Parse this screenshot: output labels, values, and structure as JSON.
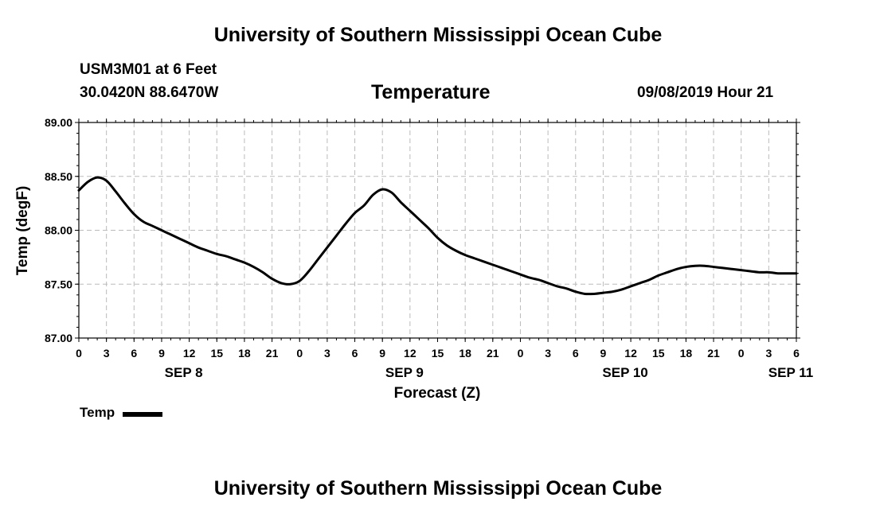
{
  "header": {
    "title": "University of Southern Mississippi Ocean Cube",
    "station": "USM3M01 at 6 Feet",
    "coordinates": "30.0420N 88.6470W",
    "parameter": "Temperature",
    "datetime": "09/08/2019 Hour 21"
  },
  "footer": {
    "title": "University of Southern Mississippi Ocean Cube"
  },
  "colors": {
    "line": "#000000",
    "grid": "#bbbbbb"
  },
  "chart_data": {
    "type": "line",
    "title": "Temperature",
    "xlabel": "Forecast (Z)",
    "ylabel": "Temp (degF)",
    "ylim": [
      87.0,
      89.0
    ],
    "yticks": [
      "87.00",
      "87.50",
      "88.00",
      "88.50",
      "89.00"
    ],
    "xlim_hours": [
      0,
      78
    ],
    "xtick_step_hours": 3,
    "xtick_labels": [
      "0",
      "3",
      "6",
      "9",
      "12",
      "15",
      "18",
      "21",
      "0",
      "3",
      "6",
      "9",
      "12",
      "15",
      "18",
      "21",
      "0",
      "3",
      "6",
      "9",
      "12",
      "15",
      "18",
      "21",
      "0",
      "3",
      "6"
    ],
    "day_labels": [
      {
        "label": "SEP 8",
        "hour": 12
      },
      {
        "label": "SEP 9",
        "hour": 36
      },
      {
        "label": "SEP 10",
        "hour": 60
      },
      {
        "label": "SEP 11",
        "hour": 78
      }
    ],
    "grid": true,
    "legend_position": "bottom-left",
    "series": [
      {
        "name": "Temp",
        "x_hours": [
          0,
          1,
          2,
          3,
          4,
          5,
          6,
          7,
          8,
          9,
          10,
          11,
          12,
          13,
          14,
          15,
          16,
          17,
          18,
          19,
          20,
          21,
          22,
          23,
          24,
          25,
          26,
          27,
          28,
          29,
          30,
          31,
          32,
          33,
          34,
          35,
          36,
          37,
          38,
          39,
          40,
          41,
          42,
          43,
          44,
          45,
          46,
          47,
          48,
          49,
          50,
          51,
          52,
          53,
          54,
          55,
          56,
          57,
          58,
          59,
          60,
          61,
          62,
          63,
          64,
          65,
          66,
          67,
          68,
          69,
          70,
          71,
          72,
          73,
          74,
          75,
          76,
          77,
          78
        ],
        "values": [
          88.37,
          88.45,
          88.49,
          88.46,
          88.36,
          88.25,
          88.15,
          88.08,
          88.04,
          88.0,
          87.96,
          87.92,
          87.88,
          87.84,
          87.81,
          87.78,
          87.76,
          87.73,
          87.7,
          87.66,
          87.61,
          87.55,
          87.51,
          87.5,
          87.53,
          87.62,
          87.73,
          87.84,
          87.95,
          88.06,
          88.16,
          88.23,
          88.33,
          88.38,
          88.35,
          88.26,
          88.18,
          88.1,
          88.02,
          87.93,
          87.86,
          87.81,
          87.77,
          87.74,
          87.71,
          87.68,
          87.65,
          87.62,
          87.59,
          87.56,
          87.54,
          87.51,
          87.48,
          87.46,
          87.43,
          87.41,
          87.41,
          87.42,
          87.43,
          87.45,
          87.48,
          87.51,
          87.54,
          87.58,
          87.61,
          87.64,
          87.66,
          87.67,
          87.67,
          87.66,
          87.65,
          87.64,
          87.63,
          87.62,
          87.61,
          87.61,
          87.6,
          87.6,
          87.6
        ]
      }
    ]
  }
}
